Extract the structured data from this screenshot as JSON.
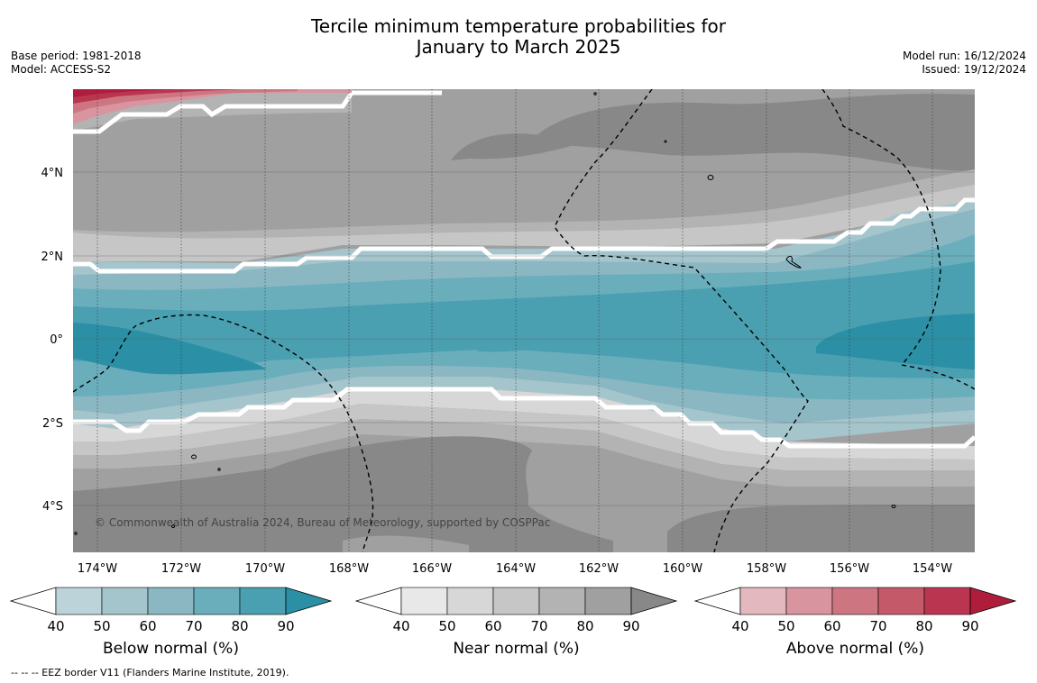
{
  "title": {
    "line1": "Tercile minimum temperature probabilities for",
    "line2": "January to March 2025"
  },
  "meta": {
    "base_period": "Base period: 1981-2018",
    "model": "Model: ACCESS-S2",
    "model_run": "Model run: 16/12/2024",
    "issued": "Issued: 19/12/2024"
  },
  "map": {
    "lon_range": [
      -174.6,
      -153.0
    ],
    "lat_range": [
      -5.1,
      6.0
    ],
    "lat_ticks": [
      {
        "value": 4,
        "label": "4°N"
      },
      {
        "value": 2,
        "label": "2°N"
      },
      {
        "value": 0,
        "label": "0°"
      },
      {
        "value": -2,
        "label": "2°S"
      },
      {
        "value": -4,
        "label": "4°S"
      }
    ],
    "lon_ticks": [
      {
        "value": -174,
        "label": "174°W"
      },
      {
        "value": -172,
        "label": "172°W"
      },
      {
        "value": -170,
        "label": "170°W"
      },
      {
        "value": -168,
        "label": "168°W"
      },
      {
        "value": -166,
        "label": "166°W"
      },
      {
        "value": -164,
        "label": "164°W"
      },
      {
        "value": -162,
        "label": "162°W"
      },
      {
        "value": -160,
        "label": "160°W"
      },
      {
        "value": -158,
        "label": "158°W"
      },
      {
        "value": -156,
        "label": "156°W"
      },
      {
        "value": -154,
        "label": "154°W"
      }
    ],
    "copyright": "© Commonwealth of Australia 2024, Bureau of Meteorology, supported by COSPPac"
  },
  "colors": {
    "below": [
      "#bcd3da",
      "#a5c5cc",
      "#8bb7c3",
      "#6aaebc",
      "#4aa0b1",
      "#2b8fa5"
    ],
    "near": [
      "#e8e8e8",
      "#d7d7d7",
      "#c6c6c6",
      "#b3b3b3",
      "#a0a0a0",
      "#888888"
    ],
    "above": [
      "#e3b8bf",
      "#d8959f",
      "#cd7682",
      "#c45a69",
      "#ba3650",
      "#ae1e3c"
    ]
  },
  "colorbars": [
    {
      "key": "below",
      "label": "Below normal (%)",
      "ticks": [
        "40",
        "50",
        "60",
        "70",
        "80",
        "90"
      ]
    },
    {
      "key": "near",
      "label": "Near normal (%)",
      "ticks": [
        "40",
        "50",
        "60",
        "70",
        "80",
        "90"
      ]
    },
    {
      "key": "above",
      "label": "Above normal (%)",
      "ticks": [
        "40",
        "50",
        "60",
        "70",
        "80",
        "90"
      ]
    }
  ],
  "footnote": "--  --  -- EEZ border V11 (Flanders Marine Institute, 2019)."
}
